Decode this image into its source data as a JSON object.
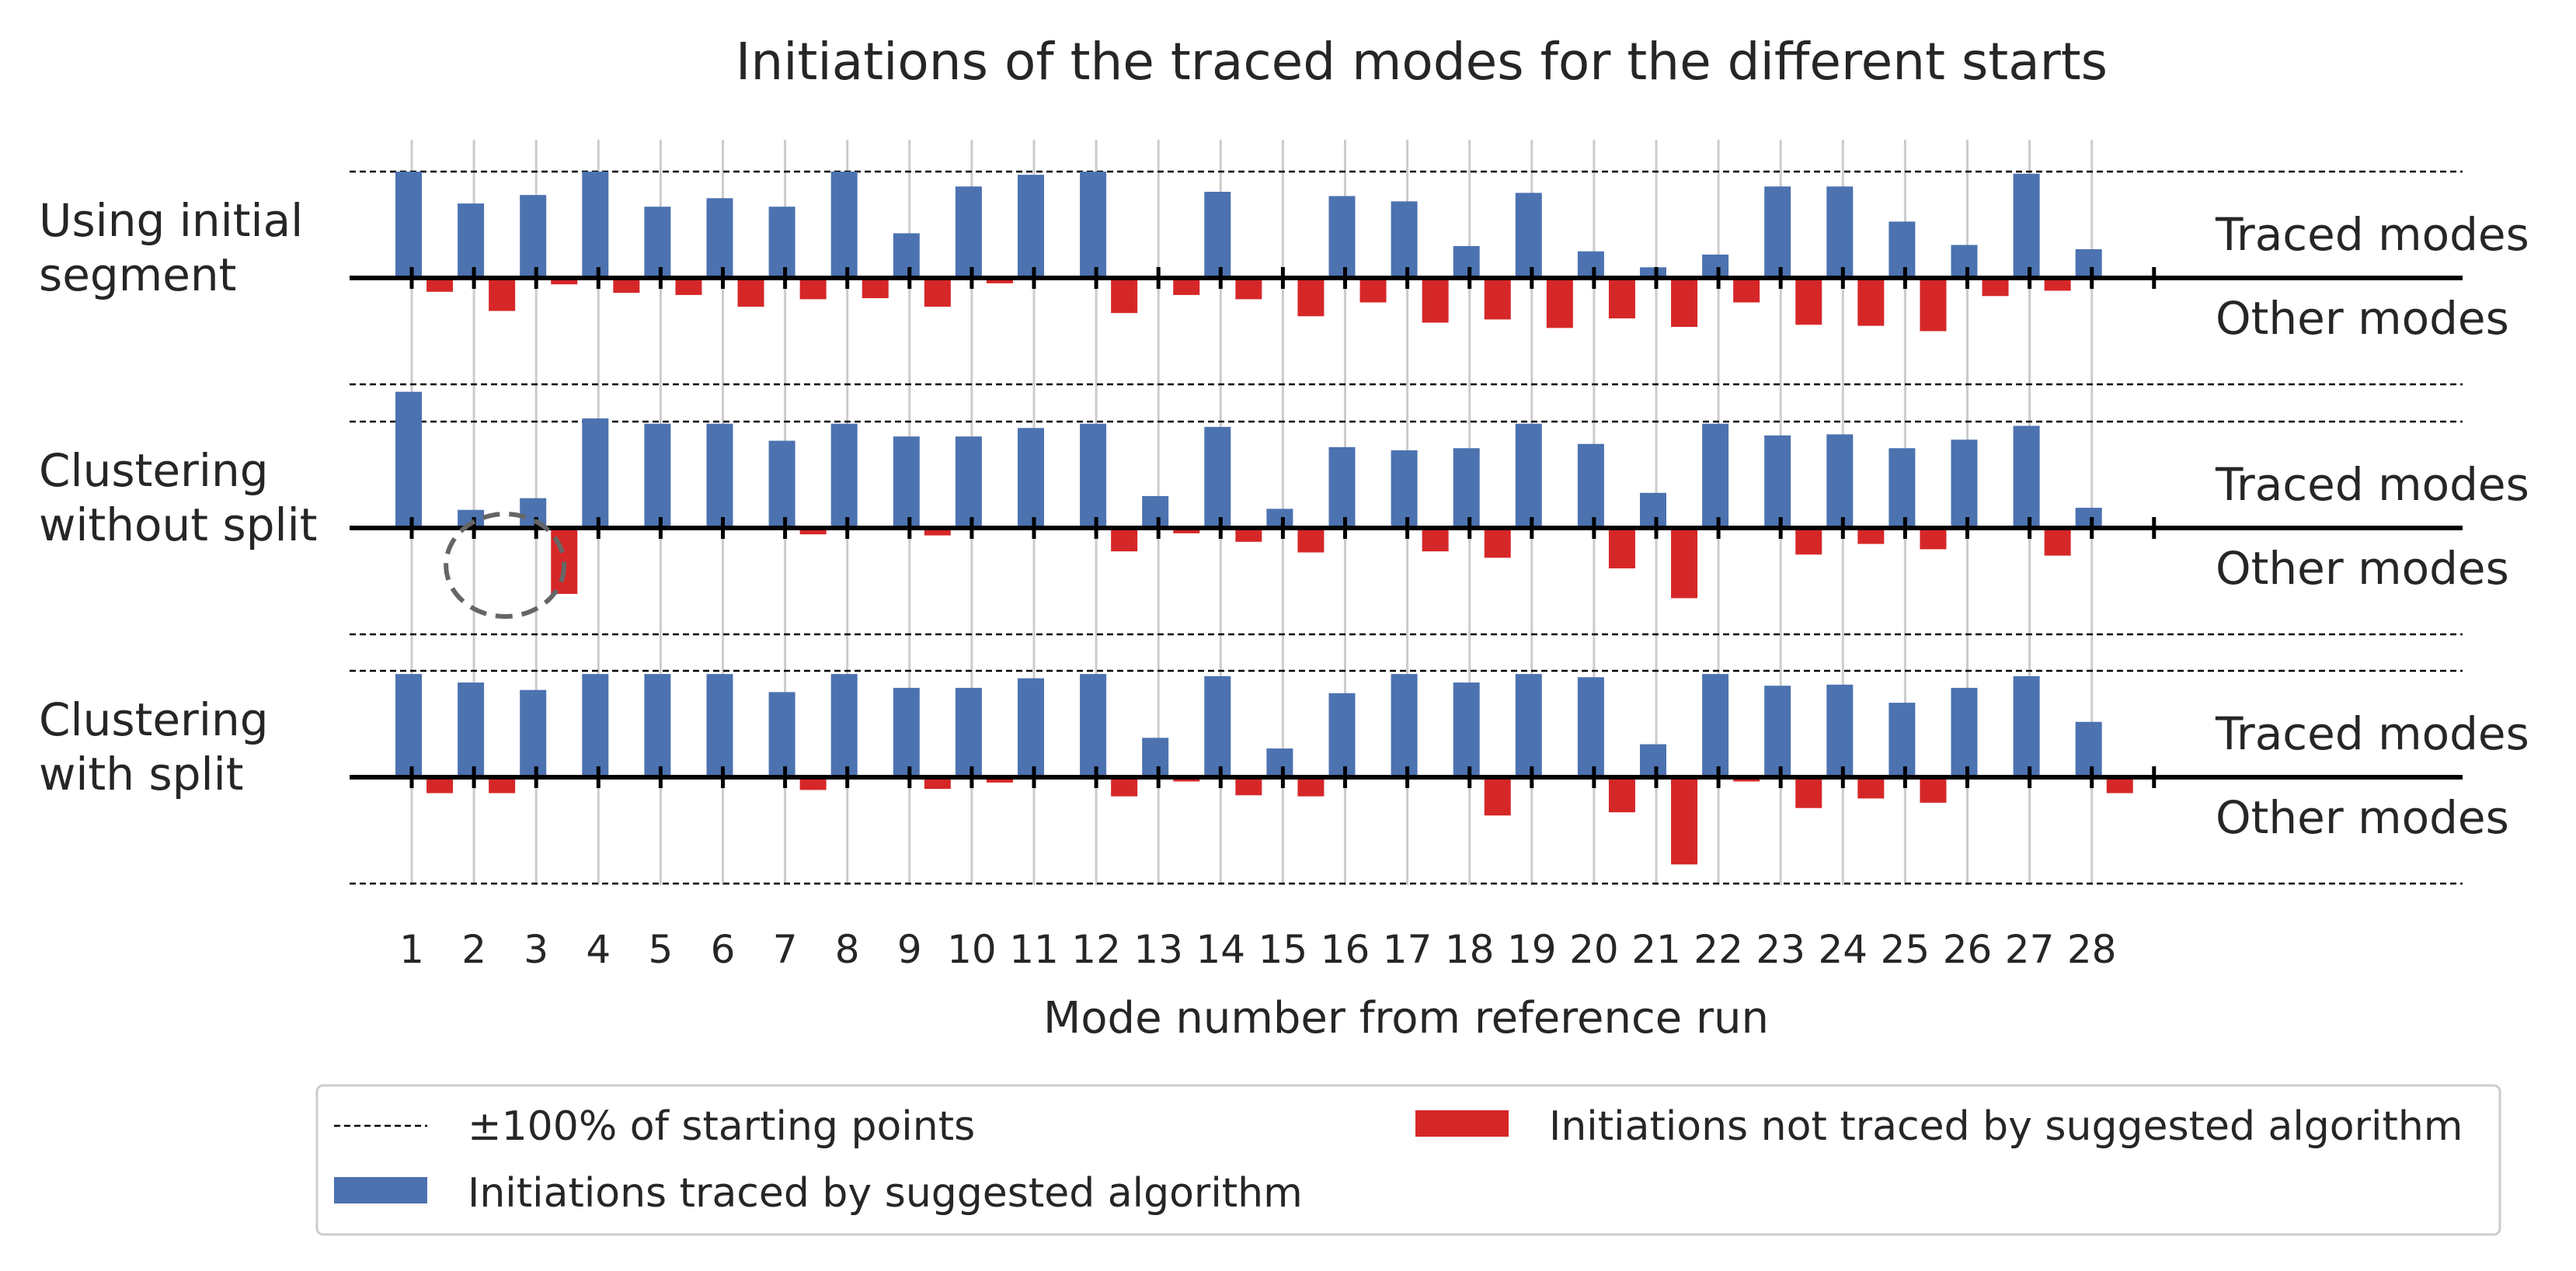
{
  "chart_data": {
    "type": "bar",
    "title": "Initiations of the traced modes for the different starts",
    "xlabel": "Mode number from reference run",
    "categories": [
      "1",
      "2",
      "3",
      "4",
      "5",
      "6",
      "7",
      "8",
      "9",
      "10",
      "11",
      "12",
      "13",
      "14",
      "15",
      "16",
      "17",
      "18",
      "19",
      "20",
      "21",
      "22",
      "23",
      "24",
      "25",
      "26",
      "27",
      "28"
    ],
    "ylim": [
      -1,
      1
    ],
    "reference_line_label": "±100% of starting points",
    "side_labels": {
      "positive": "Traced modes",
      "negative": "Other modes"
    },
    "legend": {
      "placement": "bottom",
      "reference": "±100% of starting points",
      "traced": "Initiations traced by suggested algorithm",
      "not_traced": "Initiations not traced by suggested algorithm"
    },
    "colors": {
      "traced": "#4c72b0",
      "not_traced": "#d62728",
      "reference": "#000000",
      "grid": "#cccccc",
      "highlight": "#666666"
    },
    "panels": [
      {
        "label": "Using initial\nsegment",
        "traced": [
          1.0,
          0.7,
          0.78,
          1.0,
          0.67,
          0.75,
          0.67,
          1.0,
          0.42,
          0.86,
          0.97,
          1.0,
          0.0,
          0.81,
          0.0,
          0.77,
          0.72,
          0.3,
          0.8,
          0.25,
          0.1,
          0.22,
          0.86,
          0.86,
          0.53,
          0.31,
          0.98,
          0.27
        ],
        "not_traced": [
          0.13,
          0.31,
          0.06,
          0.14,
          0.16,
          0.27,
          0.2,
          0.19,
          0.27,
          0.05,
          0.0,
          0.33,
          0.16,
          0.2,
          0.36,
          0.23,
          0.42,
          0.39,
          0.47,
          0.38,
          0.46,
          0.23,
          0.44,
          0.45,
          0.5,
          0.17,
          0.12,
          0.0
        ]
      },
      {
        "label": "Clustering\nwithout split",
        "traced": [
          1.28,
          0.17,
          0.28,
          1.03,
          0.98,
          0.98,
          0.82,
          0.98,
          0.86,
          0.86,
          0.94,
          0.98,
          0.3,
          0.95,
          0.18,
          0.76,
          0.73,
          0.75,
          0.98,
          0.79,
          0.33,
          0.98,
          0.87,
          0.88,
          0.75,
          0.83,
          0.96,
          0.19
        ],
        "not_traced": [
          0.0,
          0.0,
          0.62,
          0.0,
          0.0,
          0.0,
          0.06,
          0.0,
          0.07,
          0.0,
          0.0,
          0.22,
          0.05,
          0.13,
          0.23,
          0.0,
          0.22,
          0.28,
          0.0,
          0.38,
          0.66,
          0.0,
          0.25,
          0.15,
          0.2,
          0.0,
          0.26,
          0.0
        ],
        "highlight_category": "2"
      },
      {
        "label": "Clustering\nwith split",
        "traced": [
          0.97,
          0.89,
          0.82,
          0.97,
          0.97,
          0.97,
          0.8,
          0.97,
          0.84,
          0.84,
          0.93,
          0.97,
          0.37,
          0.95,
          0.27,
          0.79,
          0.97,
          0.89,
          0.97,
          0.94,
          0.31,
          0.97,
          0.86,
          0.87,
          0.7,
          0.84,
          0.95,
          0.52
        ],
        "not_traced": [
          0.15,
          0.15,
          0.0,
          0.0,
          0.0,
          0.0,
          0.12,
          0.0,
          0.11,
          0.05,
          0.0,
          0.18,
          0.04,
          0.17,
          0.18,
          0.0,
          0.0,
          0.36,
          0.0,
          0.33,
          0.82,
          0.04,
          0.29,
          0.2,
          0.24,
          0.0,
          0.0,
          0.15
        ]
      }
    ]
  }
}
